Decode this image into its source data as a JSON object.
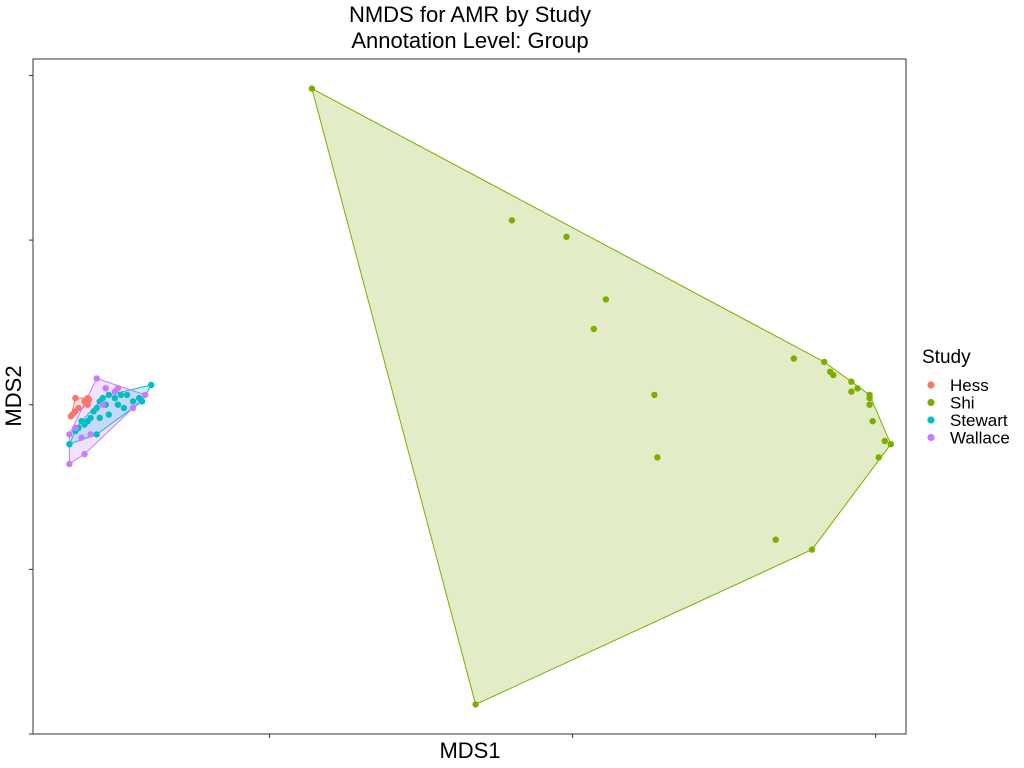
{
  "chart_data": {
    "type": "scatter",
    "title": "NMDS for AMR by Study",
    "subtitle": "Annotation Level: Group",
    "xlabel": "MDS1",
    "ylabel": "MDS2",
    "xlim": [
      -0.58,
      2.3
    ],
    "ylim": [
      -1.0,
      1.05
    ],
    "xticks": [
      0.2,
      1.2,
      2.2
    ],
    "yticks": [
      -1.0,
      -0.5,
      0.0,
      0.5,
      1.0
    ],
    "tick_labels_shown": false,
    "grid": false,
    "legend": {
      "title": "Study",
      "position": "right"
    },
    "series": [
      {
        "name": "Hess",
        "color": "#F8766D",
        "hull": true,
        "points": [
          [
            -0.45,
            -0.03
          ],
          [
            -0.44,
            -0.02
          ],
          [
            -0.455,
            -0.035
          ],
          [
            -0.44,
            0.02
          ],
          [
            -0.4,
            0.02
          ],
          [
            -0.395,
            0.015
          ],
          [
            -0.41,
            0.01
          ],
          [
            -0.4,
            0.0
          ],
          [
            -0.43,
            -0.01
          ]
        ]
      },
      {
        "name": "Shi",
        "color": "#7CAE00",
        "hull": true,
        "points": [
          [
            0.34,
            0.96
          ],
          [
            1.47,
            0.03
          ],
          [
            1.48,
            -0.16
          ],
          [
            0.88,
            -0.91
          ],
          [
            1.87,
            -0.41
          ],
          [
            1.99,
            -0.44
          ],
          [
            2.21,
            -0.16
          ],
          [
            2.23,
            -0.11
          ],
          [
            2.25,
            -0.12
          ],
          [
            1.0,
            0.56
          ],
          [
            1.18,
            0.51
          ],
          [
            1.31,
            0.32
          ],
          [
            1.27,
            0.23
          ],
          [
            1.93,
            0.14
          ],
          [
            2.03,
            0.13
          ],
          [
            2.05,
            0.1
          ],
          [
            2.06,
            0.09
          ],
          [
            2.12,
            0.07
          ],
          [
            2.14,
            0.05
          ],
          [
            2.12,
            0.04
          ],
          [
            2.18,
            0.03
          ],
          [
            2.18,
            0.02
          ],
          [
            2.18,
            0.0
          ],
          [
            2.19,
            -0.05
          ]
        ]
      },
      {
        "name": "Stewart",
        "color": "#00BFC4",
        "hull": true,
        "points": [
          [
            -0.46,
            -0.12
          ],
          [
            -0.19,
            0.06
          ],
          [
            -0.27,
            0.03
          ],
          [
            -0.23,
            0.02
          ],
          [
            -0.22,
            0.01
          ],
          [
            -0.25,
            0.01
          ],
          [
            -0.29,
            0.03
          ],
          [
            -0.31,
            0.02
          ],
          [
            -0.33,
            0.03
          ],
          [
            -0.35,
            0.02
          ],
          [
            -0.34,
            0.0
          ],
          [
            -0.36,
            0.01
          ],
          [
            -0.37,
            -0.01
          ],
          [
            -0.38,
            -0.02
          ],
          [
            -0.39,
            -0.04
          ],
          [
            -0.4,
            -0.05
          ],
          [
            -0.41,
            -0.06
          ],
          [
            -0.42,
            -0.05
          ],
          [
            -0.43,
            -0.07
          ],
          [
            -0.44,
            -0.08
          ],
          [
            -0.3,
            0.0
          ],
          [
            -0.28,
            -0.01
          ],
          [
            -0.33,
            -0.03
          ],
          [
            -0.36,
            -0.04
          ],
          [
            -0.37,
            -0.09
          ]
        ]
      },
      {
        "name": "Wallace",
        "color": "#C77CFF",
        "hull": true,
        "points": [
          [
            -0.46,
            -0.09
          ],
          [
            -0.46,
            -0.18
          ],
          [
            -0.41,
            -0.15
          ],
          [
            -0.37,
            0.08
          ],
          [
            -0.21,
            0.03
          ],
          [
            -0.25,
            -0.01
          ],
          [
            -0.3,
            0.05
          ],
          [
            -0.34,
            0.05
          ],
          [
            -0.31,
            0.04
          ],
          [
            -0.35,
            0.0
          ],
          [
            -0.39,
            -0.09
          ],
          [
            -0.42,
            -0.1
          ],
          [
            -0.44,
            -0.07
          ]
        ]
      }
    ]
  }
}
